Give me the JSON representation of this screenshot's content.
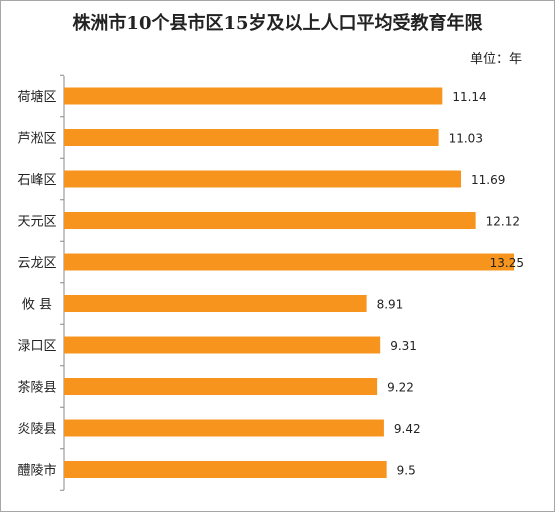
{
  "chart_data": {
    "type": "bar",
    "orientation": "horizontal",
    "title": "株洲市10个县市区15岁及以上人口平均受教育年限",
    "unit_label": "单位：年",
    "categories": [
      "荷塘区",
      "芦淞区",
      "石峰区",
      "天元区",
      "云龙区",
      "攸  县",
      "渌口区",
      "茶陵县",
      "炎陵县",
      "醴陵市"
    ],
    "values": [
      11.14,
      11.03,
      11.69,
      12.12,
      13.25,
      8.91,
      9.31,
      9.22,
      9.42,
      9.5
    ],
    "value_labels": [
      "11.14",
      "11.03",
      "11.69",
      "12.12",
      "13.25",
      "8.91",
      "9.31",
      "9.22",
      "9.42",
      "9.5"
    ],
    "xlim": [
      0,
      13.25
    ],
    "grid": false,
    "legend": "none",
    "bar_color": "#f7941d"
  }
}
